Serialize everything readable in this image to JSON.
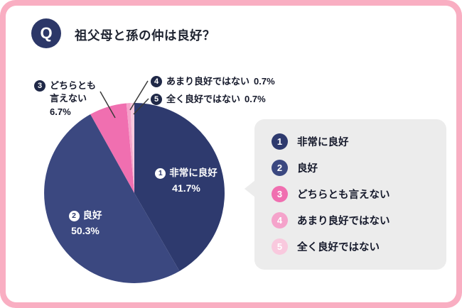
{
  "colors": {
    "frame_border": "#f9aec2",
    "card_bg": "#ffffff",
    "q_badge_bg": "#2c3768",
    "navy": "#2e3a6e",
    "legend_bg": "#ececec",
    "callout_badge": "#1f2847",
    "leader_line": "#3a3a3a"
  },
  "header": {
    "q": "Q",
    "title": "祖父母と孫の仲は良好？"
  },
  "chart_data": {
    "type": "pie",
    "title": "祖父母と孫の仲は良好？",
    "start_angle_deg": 0,
    "direction": "clockwise",
    "legend_position": "right",
    "slices": [
      {
        "rank": "1",
        "label": "非常に良好",
        "value": 41.7,
        "color": "#2e3a6e",
        "label_placement": "inside"
      },
      {
        "rank": "2",
        "label": "良好",
        "value": 50.3,
        "color": "#3b4880",
        "label_placement": "inside"
      },
      {
        "rank": "3",
        "label": "どちらとも言えない",
        "value": 6.7,
        "color": "#f06fb0",
        "label_placement": "callout"
      },
      {
        "rank": "4",
        "label": "あまり良好ではない",
        "value": 0.7,
        "color": "#f5a3cb",
        "label_placement": "callout"
      },
      {
        "rank": "5",
        "label": "全く良好ではない",
        "value": 0.7,
        "color": "#f9c9de",
        "label_placement": "callout"
      }
    ]
  }
}
